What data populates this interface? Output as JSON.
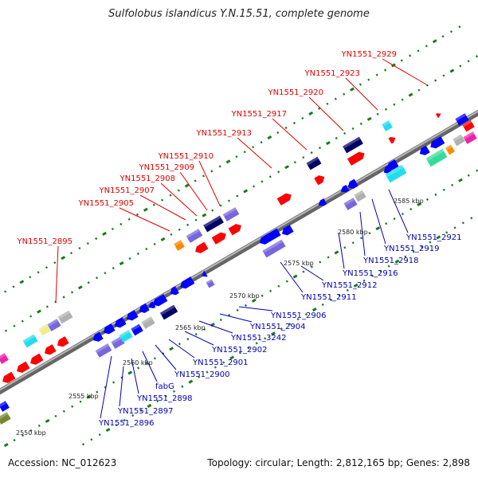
{
  "title": "Sulfolobus islandicus Y.N.15.51, complete genome",
  "footer": {
    "accession": "Accession: NC_012623",
    "summary": "Topology: circular; Length: 2,812,165 bp; Genes: 2,898"
  },
  "colors": {
    "backbone": "#8a8a8a",
    "tick": "#1a7a1a",
    "label_top": "#e00000",
    "label_bottom": "#0000b0",
    "gene_red": "#ff0000",
    "gene_blue": "#0000ff",
    "gene_navy": "#000066",
    "gene_purple": "#7766dd",
    "gene_gray": "#b0b0b0",
    "gene_cyan": "#22ddee",
    "gene_orange": "#ff8800",
    "gene_green": "#33dd99",
    "gene_magenta": "#ee22aa",
    "gene_olive": "#778833",
    "gene_yellow": "#eeee88"
  },
  "scale_labels": [
    "2550 kbp",
    "2555 kbp",
    "2560 kbp",
    "2565 kbp",
    "2570 kbp",
    "2575 kbp",
    "2580 kbp",
    "2585 kbp"
  ],
  "labels_top": [
    "YN1551_2895",
    "YN1551_2905",
    "YN1551_2907",
    "YN1551_2908",
    "YN1551_2909",
    "YN1551_2910",
    "YN1551_2913",
    "YN1551_2917",
    "YN1551_2920",
    "YN1551_2923",
    "YN1551_2929"
  ],
  "labels_bottom": [
    "YN1551_2896",
    "YN1551_2897",
    "YN1551_2898",
    "fabG",
    "YN1551_2900",
    "YN1551_2901",
    "YN1551_2902",
    "YN1551_3242",
    "YN1551_2904",
    "YN1551_2906",
    "YN1551_2911",
    "YN1551_2912",
    "YN1551_2916",
    "YN1551_2918",
    "YN1551_2919",
    "YN1551_2921"
  ]
}
